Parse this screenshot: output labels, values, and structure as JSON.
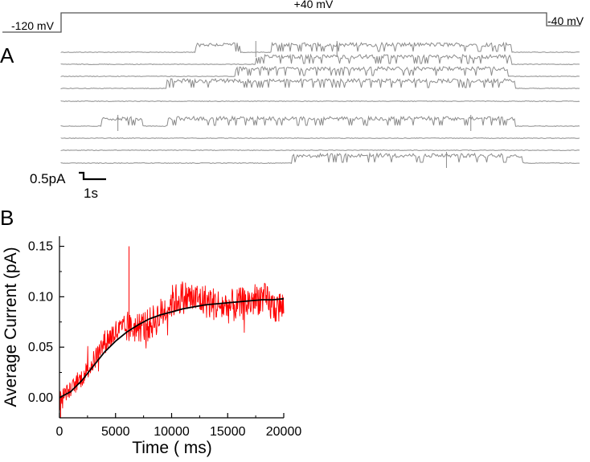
{
  "panel_a": {
    "label": "A",
    "protocol": {
      "hold_label": "-120 mV",
      "step_label": "+40 mV",
      "return_label": "-40 mV"
    },
    "scale_bar": {
      "current_label": "0.5pA",
      "time_label": "1s",
      "current_pA": 0.5,
      "time_s": 1
    },
    "trace_color": "#8c8c8c",
    "sweeps": [
      {
        "blocks": [
          [
            3.3,
            4.4
          ],
          [
            5.2,
            11.1
          ]
        ],
        "spikes": [
          4.8,
          6.8
        ]
      },
      {
        "blocks": [
          [
            4.8,
            11.1
          ]
        ],
        "spikes": []
      },
      {
        "blocks": [
          [
            4.3,
            11.0
          ]
        ],
        "spikes": []
      },
      {
        "blocks": [
          [
            2.6,
            11.2
          ]
        ],
        "spikes": []
      },
      {
        "blocks": [],
        "spikes": []
      },
      {
        "blocks": [
          [
            1.0,
            2.0
          ],
          [
            2.6,
            11.2
          ]
        ],
        "spikes": [
          1.4,
          10.1
        ]
      },
      {
        "blocks": [],
        "spikes": []
      },
      {
        "blocks": [],
        "spikes": []
      },
      {
        "blocks": [
          [
            5.7,
            11.4
          ]
        ],
        "spikes": [
          9.5
        ]
      }
    ]
  },
  "panel_b": {
    "label": "B",
    "chart_data": {
      "type": "line",
      "xlabel": "Time ( ms)",
      "ylabel": "Average Current (pA)",
      "xlim": [
        0,
        20000
      ],
      "ylim": [
        -0.02,
        0.16
      ],
      "x_ticks": [
        0,
        5000,
        10000,
        15000,
        20000
      ],
      "y_ticks": [
        0.0,
        0.05,
        0.1,
        0.15
      ],
      "x_tick_labels": [
        "0",
        "5000",
        "10000",
        "15000",
        "20000"
      ],
      "y_tick_labels": [
        "0.00",
        "0.05",
        "0.10",
        "0.15"
      ],
      "series": [
        {
          "style": "noisy",
          "color": "#ff0000",
          "x": [
            0,
            1000,
            2000,
            3000,
            4000,
            5000,
            6000,
            7000,
            8000,
            9000,
            10000,
            11000,
            12000,
            13000,
            14000,
            15000,
            16000,
            17000,
            18000,
            19000,
            20000
          ],
          "y": [
            0.0,
            0.008,
            0.02,
            0.035,
            0.055,
            0.065,
            0.068,
            0.07,
            0.072,
            0.082,
            0.095,
            0.1,
            0.098,
            0.096,
            0.092,
            0.09,
            0.092,
            0.095,
            0.1,
            0.09,
            0.09
          ],
          "outliers": [
            {
              "x": 6200,
              "y": 0.15
            },
            {
              "x": 100,
              "y": -0.02
            }
          ]
        },
        {
          "style": "fit",
          "color": "#000000",
          "x": [
            0,
            1000,
            2000,
            3000,
            4000,
            5000,
            6000,
            7000,
            8000,
            9000,
            10000,
            11000,
            12000,
            13000,
            14000,
            15000,
            16000,
            17000,
            18000,
            19000,
            20000
          ],
          "y": [
            0.0,
            0.006,
            0.017,
            0.031,
            0.045,
            0.056,
            0.065,
            0.072,
            0.078,
            0.082,
            0.085,
            0.088,
            0.09,
            0.092,
            0.093,
            0.094,
            0.095,
            0.096,
            0.097,
            0.097,
            0.098
          ]
        }
      ]
    }
  }
}
